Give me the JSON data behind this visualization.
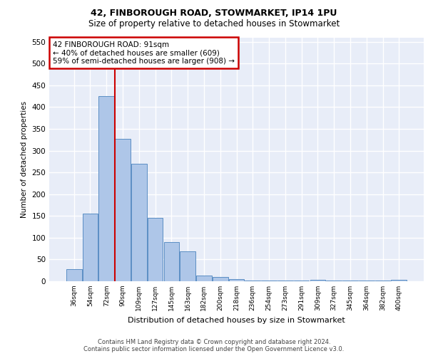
{
  "title1": "42, FINBOROUGH ROAD, STOWMARKET, IP14 1PU",
  "title2": "Size of property relative to detached houses in Stowmarket",
  "xlabel": "Distribution of detached houses by size in Stowmarket",
  "ylabel": "Number of detached properties",
  "footer1": "Contains HM Land Registry data © Crown copyright and database right 2024.",
  "footer2": "Contains public sector information licensed under the Open Government Licence v3.0.",
  "categories": [
    "36sqm",
    "54sqm",
    "72sqm",
    "90sqm",
    "109sqm",
    "127sqm",
    "145sqm",
    "163sqm",
    "182sqm",
    "200sqm",
    "218sqm",
    "236sqm",
    "254sqm",
    "273sqm",
    "291sqm",
    "309sqm",
    "327sqm",
    "345sqm",
    "364sqm",
    "382sqm",
    "400sqm"
  ],
  "values": [
    27,
    155,
    425,
    327,
    270,
    145,
    90,
    68,
    13,
    10,
    5,
    2,
    2,
    1,
    1,
    4,
    1,
    1,
    1,
    1,
    3
  ],
  "bar_color": "#aec6e8",
  "bar_edge_color": "#5b8ec4",
  "background_color": "#e8edf8",
  "grid_color": "#ffffff",
  "annotation_text_line1": "42 FINBOROUGH ROAD: 91sqm",
  "annotation_text_line2": "← 40% of detached houses are smaller (609)",
  "annotation_text_line3": "59% of semi-detached houses are larger (908) →",
  "annotation_box_facecolor": "#ffffff",
  "annotation_box_edgecolor": "#cc0000",
  "vline_color": "#cc0000",
  "ylim": [
    0,
    560
  ],
  "yticks": [
    0,
    50,
    100,
    150,
    200,
    250,
    300,
    350,
    400,
    450,
    500,
    550
  ],
  "vline_x_index": 2.5
}
